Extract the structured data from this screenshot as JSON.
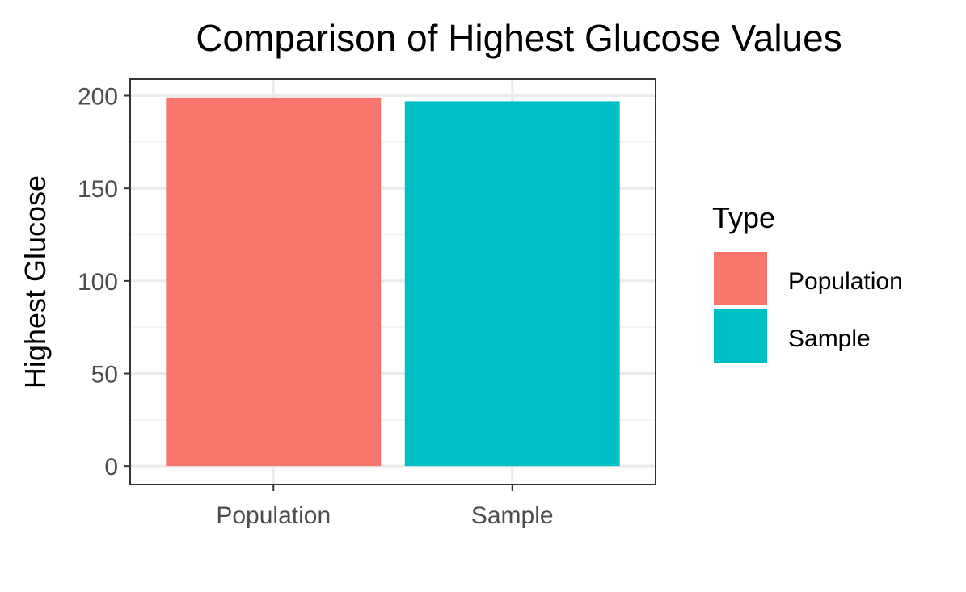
{
  "chart_data": {
    "type": "bar",
    "title": "Comparison of Highest Glucose Values",
    "xlabel": "",
    "ylabel": "Highest Glucose",
    "categories": [
      "Population",
      "Sample"
    ],
    "values": [
      199,
      197
    ],
    "colors": [
      "#F8766D",
      "#00BFC4"
    ],
    "ylim": [
      -9.95,
      208.95
    ],
    "yticks": [
      0,
      50,
      100,
      150,
      200
    ],
    "grid": true,
    "legend": {
      "title": "Type",
      "position": "right",
      "entries": [
        {
          "label": "Population",
          "color": "#F8766D"
        },
        {
          "label": "Sample",
          "color": "#00BFC4"
        }
      ]
    }
  }
}
